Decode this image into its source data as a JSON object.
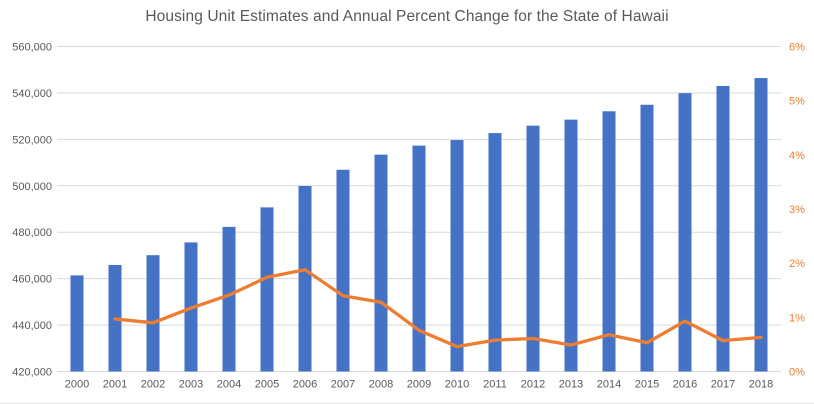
{
  "chart_data": {
    "type": "combo-bar-line",
    "title": "Housing Unit Estimates and Annual Percent Change for the State of Hawaii",
    "categories": [
      "2000",
      "2001",
      "2002",
      "2003",
      "2004",
      "2005",
      "2006",
      "2007",
      "2008",
      "2009",
      "2010",
      "2011",
      "2012",
      "2013",
      "2014",
      "2015",
      "2016",
      "2017",
      "2018"
    ],
    "series": [
      {
        "name": "Housing Unit Estimates",
        "type": "bar",
        "axis": "left",
        "color": "#4472C4",
        "values": [
          461400,
          465900,
          470100,
          475600,
          482300,
          490700,
          499900,
          506900,
          513400,
          517300,
          519700,
          522700,
          525900,
          528500,
          532100,
          534900,
          539900,
          543000,
          546400
        ]
      },
      {
        "name": "Annual Percent Change",
        "type": "line",
        "axis": "right",
        "color": "#ED7D31",
        "values": [
          null,
          0.97,
          0.9,
          1.17,
          1.41,
          1.74,
          1.88,
          1.4,
          1.28,
          0.76,
          0.46,
          0.58,
          0.61,
          0.49,
          0.68,
          0.53,
          0.93,
          0.57,
          0.63
        ]
      }
    ],
    "left_axis": {
      "min": 420000,
      "max": 560000,
      "step": 20000,
      "tick_labels": [
        "420,000",
        "440,000",
        "460,000",
        "480,000",
        "500,000",
        "520,000",
        "540,000",
        "560,000"
      ],
      "text_color": "#595959"
    },
    "right_axis": {
      "min": 0,
      "max": 6,
      "step": 1,
      "tick_labels": [
        "0%",
        "1%",
        "2%",
        "3%",
        "4%",
        "5%",
        "6%"
      ],
      "text_color": "#ED7D31"
    },
    "x_axis": {
      "text_color": "#595959"
    },
    "grid": true,
    "gridline_color": "#D9D9D9",
    "legend": "none",
    "title_color": "#595959"
  }
}
